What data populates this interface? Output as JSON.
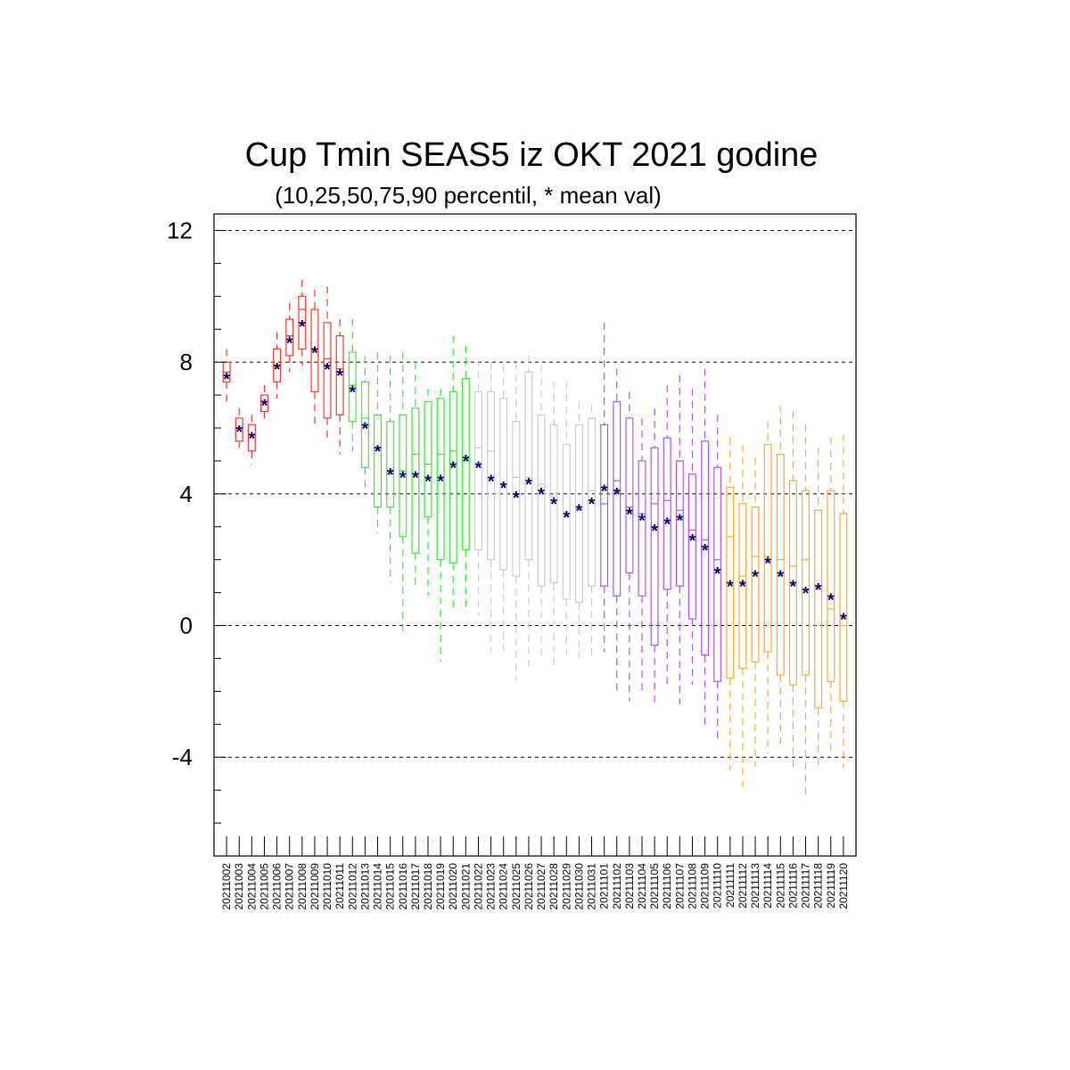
{
  "chart_data": {
    "type": "box",
    "title": "Cup Tmin SEAS5 iz OKT 2021 godine",
    "subtitle": "(10,25,50,75,90 percentil, * mean val)",
    "xlabel": "",
    "ylabel": "",
    "ylim": [
      -7,
      12.5
    ],
    "yticks": [
      -4,
      0,
      4,
      8,
      12
    ],
    "grid": "horizontal dashed at major ticks",
    "mean_color": "#000066",
    "categories": [
      "20211002",
      "20211003",
      "20211004",
      "20211005",
      "20211006",
      "20211007",
      "20211008",
      "20211009",
      "20211010",
      "20211011",
      "20211012",
      "20211013",
      "20211014",
      "20211015",
      "20211016",
      "20211017",
      "20211018",
      "20211019",
      "20211020",
      "20211021",
      "20211022",
      "20211023",
      "20211024",
      "20211025",
      "20211026",
      "20211027",
      "20211028",
      "20211029",
      "20211030",
      "20211031",
      "20211101",
      "20211102",
      "20211103",
      "20211104",
      "20211105",
      "20211106",
      "20211107",
      "20211108",
      "20211109",
      "20211110",
      "20211111",
      "20211112",
      "20211113",
      "20211114",
      "20211115",
      "20211116",
      "20211117",
      "20211118",
      "20211119",
      "20211120"
    ],
    "colors": [
      "#ff3333",
      "#ff3333",
      "#ff3333",
      "#ff3333",
      "#ff3333",
      "#ff3333",
      "#ff3333",
      "#ff3333",
      "#ff3333",
      "#ff3333",
      "#33ee33",
      "#33ee33",
      "#33ee33",
      "#33ee33",
      "#33ee33",
      "#33ee33",
      "#33ee33",
      "#33ee33",
      "#33ee33",
      "#33ee33",
      "#cccccc",
      "#cccccc",
      "#cccccc",
      "#cccccc",
      "#cccccc",
      "#cccccc",
      "#cccccc",
      "#cccccc",
      "#cccccc",
      "#cccccc",
      "#aa55ee",
      "#aa55ee",
      "#aa55ee",
      "#aa55ee",
      "#aa55ee",
      "#aa55ee",
      "#aa55ee",
      "#aa55ee",
      "#aa55ee",
      "#aa55ee",
      "#ffaa22",
      "#ffaa22",
      "#ffaa22",
      "#ffaa22",
      "#ffaa22",
      "#ffaa22",
      "#ffaa22",
      "#ffaa22",
      "#ffaa22",
      "#ffaa22"
    ],
    "p10": [
      6.8,
      5.4,
      4.9,
      6.2,
      6.9,
      7.7,
      7.9,
      6.0,
      5.6,
      5.2,
      5.3,
      4.2,
      2.8,
      1.3,
      -0.3,
      1.2,
      0.9,
      -1.1,
      0.4,
      0.5,
      0.3,
      -0.8,
      -0.8,
      -1.7,
      -1.4,
      -1.0,
      -1.3,
      -0.9,
      -1.0,
      -1.0,
      -0.8,
      -2.0,
      -2.3,
      -2.0,
      -2.5,
      -1.8,
      -2.4,
      -1.8,
      -3.1,
      -3.6,
      -4.4,
      -5.0,
      -4.3,
      -3.9,
      -3.6,
      -4.4,
      -5.3,
      -4.4,
      -4.0,
      -4.3
    ],
    "p25": [
      7.4,
      5.6,
      5.3,
      6.5,
      7.4,
      8.2,
      8.4,
      7.1,
      6.3,
      6.4,
      6.2,
      4.8,
      3.6,
      3.6,
      2.7,
      2.2,
      3.3,
      2.0,
      1.9,
      2.3,
      2.3,
      2.0,
      1.7,
      1.5,
      2.0,
      1.2,
      1.3,
      0.8,
      0.7,
      1.2,
      1.2,
      0.9,
      1.6,
      0.9,
      -0.6,
      1.1,
      1.2,
      0.2,
      -0.9,
      -1.7,
      -1.6,
      -1.3,
      -1.1,
      -0.8,
      -1.5,
      -1.8,
      -1.5,
      -2.5,
      -1.7,
      -2.3
    ],
    "p50": [
      7.7,
      6.0,
      5.8,
      6.8,
      7.9,
      8.8,
      9.6,
      8.4,
      8.1,
      7.8,
      7.3,
      6.3,
      5.4,
      4.6,
      4.7,
      5.2,
      4.9,
      5.2,
      5.3,
      5.0,
      5.4,
      5.3,
      4.3,
      4.5,
      4.5,
      4.3,
      3.9,
      3.3,
      3.5,
      4.1,
      3.7,
      4.4,
      3.6,
      3.4,
      3.7,
      3.8,
      3.5,
      2.9,
      2.6,
      2.0,
      2.7,
      1.5,
      2.1,
      2.1,
      2.0,
      1.8,
      2.0,
      1.1,
      0.5,
      0.0
    ],
    "p75": [
      8.0,
      6.3,
      6.1,
      7.0,
      8.4,
      9.3,
      10.0,
      9.6,
      9.2,
      8.8,
      8.3,
      7.4,
      6.4,
      6.2,
      6.4,
      6.6,
      6.8,
      6.9,
      7.1,
      7.5,
      7.1,
      7.1,
      6.9,
      6.2,
      7.7,
      6.4,
      6.1,
      5.5,
      6.1,
      6.3,
      6.1,
      6.8,
      6.3,
      5.0,
      5.4,
      5.7,
      5.0,
      4.6,
      5.6,
      4.8,
      4.2,
      3.7,
      3.6,
      5.5,
      5.2,
      4.4,
      4.1,
      3.5,
      4.1,
      3.4
    ],
    "p90": [
      8.4,
      6.6,
      6.4,
      7.3,
      8.9,
      9.8,
      10.5,
      10.2,
      10.3,
      9.3,
      9.3,
      8.2,
      8.3,
      8.2,
      8.3,
      8.0,
      7.2,
      7.2,
      8.8,
      8.5,
      8.1,
      8.0,
      7.9,
      8.0,
      8.2,
      7.9,
      7.4,
      7.4,
      6.8,
      6.7,
      9.2,
      7.8,
      7.1,
      6.3,
      6.6,
      7.3,
      7.6,
      7.2,
      7.8,
      6.4,
      5.7,
      5.5,
      5.1,
      6.2,
      6.7,
      6.5,
      6.1,
      5.4,
      5.7,
      5.8
    ],
    "mean": [
      7.6,
      6.0,
      5.8,
      6.8,
      7.9,
      8.7,
      9.2,
      8.4,
      7.9,
      7.7,
      7.2,
      6.1,
      5.4,
      4.7,
      4.6,
      4.6,
      4.5,
      4.5,
      4.9,
      5.1,
      4.9,
      4.5,
      4.3,
      4.0,
      4.4,
      4.1,
      3.8,
      3.4,
      3.6,
      3.8,
      4.2,
      4.1,
      3.5,
      3.3,
      3.0,
      3.2,
      3.3,
      2.7,
      2.4,
      1.7,
      1.3,
      1.3,
      1.6,
      2.0,
      1.6,
      1.3,
      1.1,
      1.2,
      0.9,
      0.3
    ]
  }
}
